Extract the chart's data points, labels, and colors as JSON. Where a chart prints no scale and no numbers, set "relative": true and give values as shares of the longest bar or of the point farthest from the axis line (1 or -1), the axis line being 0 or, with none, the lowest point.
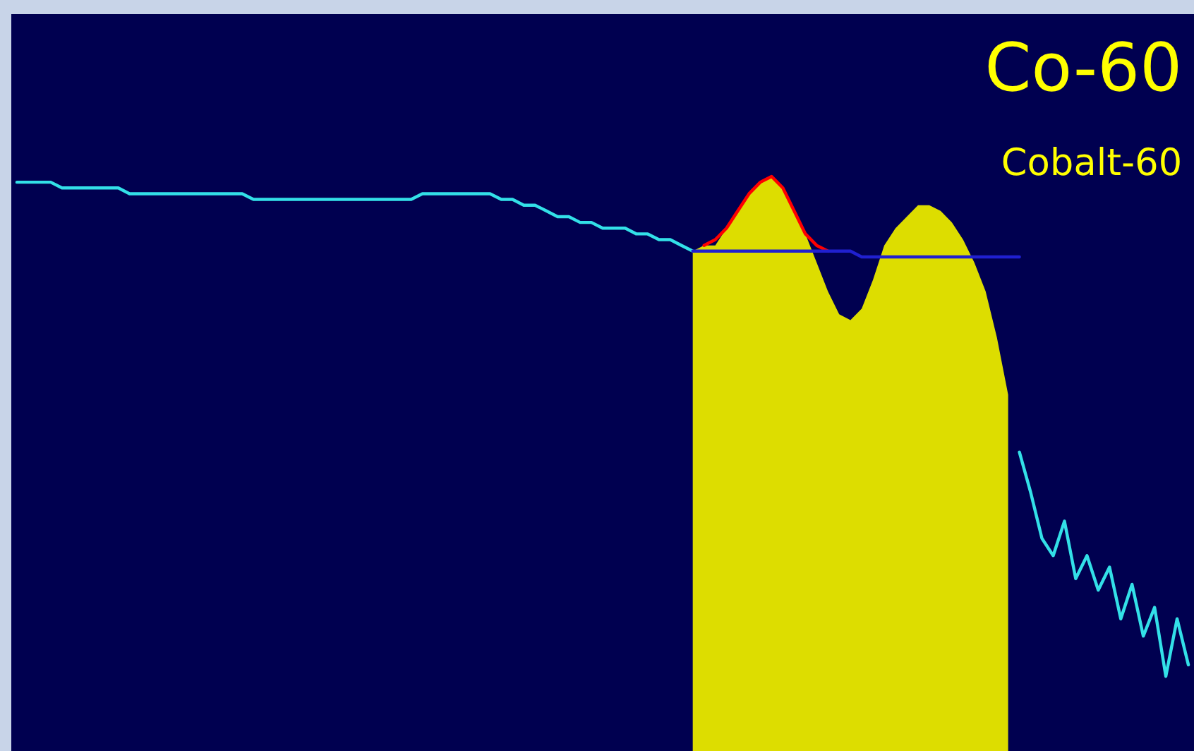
{
  "chart_data": {
    "type": "line",
    "title": "Co-60",
    "subtitle": "Cobalt-60",
    "relative": true,
    "categories": [
      null,
      null,
      null,
      null,
      null,
      null,
      null,
      null,
      null,
      null,
      null,
      null,
      null,
      null,
      null,
      null,
      null,
      null,
      null,
      null,
      null,
      null,
      null,
      null,
      null,
      null,
      null,
      null,
      null,
      null,
      null,
      null,
      null,
      null,
      null,
      null,
      null,
      null,
      null,
      null,
      null,
      null,
      null,
      null,
      null,
      null,
      null,
      null,
      null,
      null,
      null,
      null,
      null,
      null,
      null,
      null,
      null,
      null,
      null,
      null,
      null,
      null,
      null,
      null,
      null,
      null,
      null,
      null,
      null,
      null,
      null,
      null,
      null,
      null,
      null,
      null,
      null,
      null,
      null,
      null,
      null,
      null,
      null,
      null,
      null,
      null,
      null,
      null,
      null,
      null,
      null,
      null,
      null,
      null,
      null,
      null,
      null,
      null,
      null,
      null,
      null,
      null,
      null,
      null,
      null
    ],
    "series": [
      {
        "color": "#33e0e8",
        "values": [
          0.99,
          0.99,
          0.99,
          0.99,
          0.98,
          0.98,
          0.98,
          0.98,
          0.98,
          0.98,
          0.97,
          0.97,
          0.97,
          0.97,
          0.97,
          0.97,
          0.97,
          0.97,
          0.97,
          0.97,
          0.97,
          0.96,
          0.96,
          0.96,
          0.96,
          0.96,
          0.96,
          0.96,
          0.96,
          0.96,
          0.96,
          0.96,
          0.96,
          0.96,
          0.96,
          0.96,
          0.97,
          0.97,
          0.97,
          0.97,
          0.97,
          0.97,
          0.97,
          0.96,
          0.96,
          0.95,
          0.95,
          0.94,
          0.93,
          0.93,
          0.92,
          0.92,
          0.91,
          0.91,
          0.91,
          0.9,
          0.9,
          0.89,
          0.89,
          0.88,
          0.87,
          null,
          null,
          null,
          null,
          null,
          null,
          null,
          null,
          null,
          null,
          null,
          null,
          null,
          null,
          null,
          null,
          null,
          null,
          null,
          null,
          null,
          null,
          null,
          null,
          null,
          null,
          null,
          null,
          0.52,
          0.45,
          0.37,
          0.34,
          0.4,
          0.3,
          0.34,
          0.28,
          0.32,
          0.23,
          0.29,
          0.2,
          0.25,
          0.13,
          0.23,
          0.15
        ]
      },
      {
        "type": "area",
        "color": "#dddd00",
        "values": [
          null,
          null,
          null,
          null,
          null,
          null,
          null,
          null,
          null,
          null,
          null,
          null,
          null,
          null,
          null,
          null,
          null,
          null,
          null,
          null,
          null,
          null,
          null,
          null,
          null,
          null,
          null,
          null,
          null,
          null,
          null,
          null,
          null,
          null,
          null,
          null,
          null,
          null,
          null,
          null,
          null,
          null,
          null,
          null,
          null,
          null,
          null,
          null,
          null,
          null,
          null,
          null,
          null,
          null,
          null,
          null,
          null,
          null,
          null,
          null,
          0.87,
          0.88,
          0.88,
          0.91,
          0.94,
          0.97,
          0.99,
          1.0,
          0.98,
          0.94,
          0.9,
          0.85,
          0.8,
          0.76,
          0.75,
          0.77,
          0.82,
          0.88,
          0.91,
          0.93,
          0.95,
          0.95,
          0.94,
          0.92,
          0.89,
          0.85,
          0.8,
          0.72,
          0.62,
          null,
          null,
          null,
          null,
          null,
          null,
          null,
          null,
          null,
          null,
          null,
          null,
          null,
          null,
          null,
          null
        ]
      },
      {
        "color": "#ff0000",
        "values": [
          null,
          null,
          null,
          null,
          null,
          null,
          null,
          null,
          null,
          null,
          null,
          null,
          null,
          null,
          null,
          null,
          null,
          null,
          null,
          null,
          null,
          null,
          null,
          null,
          null,
          null,
          null,
          null,
          null,
          null,
          null,
          null,
          null,
          null,
          null,
          null,
          null,
          null,
          null,
          null,
          null,
          null,
          null,
          null,
          null,
          null,
          null,
          null,
          null,
          null,
          null,
          null,
          null,
          null,
          null,
          null,
          null,
          null,
          null,
          null,
          null,
          0.88,
          0.89,
          0.91,
          0.94,
          0.97,
          0.99,
          1.0,
          0.98,
          0.94,
          0.9,
          0.88,
          0.87,
          null,
          null,
          null,
          null,
          null,
          null,
          null,
          null,
          null,
          null,
          null,
          null,
          null,
          null,
          null,
          null,
          null,
          null,
          null,
          null,
          null,
          null,
          null,
          null,
          null,
          null,
          null,
          null,
          null,
          null,
          null,
          null
        ]
      },
      {
        "color": "#2020d0",
        "values": [
          null,
          null,
          null,
          null,
          null,
          null,
          null,
          null,
          null,
          null,
          null,
          null,
          null,
          null,
          null,
          null,
          null,
          null,
          null,
          null,
          null,
          null,
          null,
          null,
          null,
          null,
          null,
          null,
          null,
          null,
          null,
          null,
          null,
          null,
          null,
          null,
          null,
          null,
          null,
          null,
          null,
          null,
          null,
          null,
          null,
          null,
          null,
          null,
          null,
          null,
          null,
          null,
          null,
          null,
          null,
          null,
          null,
          null,
          null,
          null,
          0.87,
          0.87,
          0.87,
          0.87,
          0.87,
          0.87,
          0.87,
          0.87,
          0.87,
          0.87,
          0.87,
          0.87,
          0.87,
          0.87,
          0.87,
          0.86,
          0.86,
          0.86,
          0.86,
          0.86,
          0.86,
          0.86,
          0.86,
          0.86,
          0.86,
          0.86,
          0.86,
          0.86,
          0.86,
          0.86,
          null,
          null,
          null,
          null,
          null,
          null,
          null,
          null,
          null,
          null,
          null,
          null,
          null,
          null,
          null
        ]
      }
    ]
  }
}
